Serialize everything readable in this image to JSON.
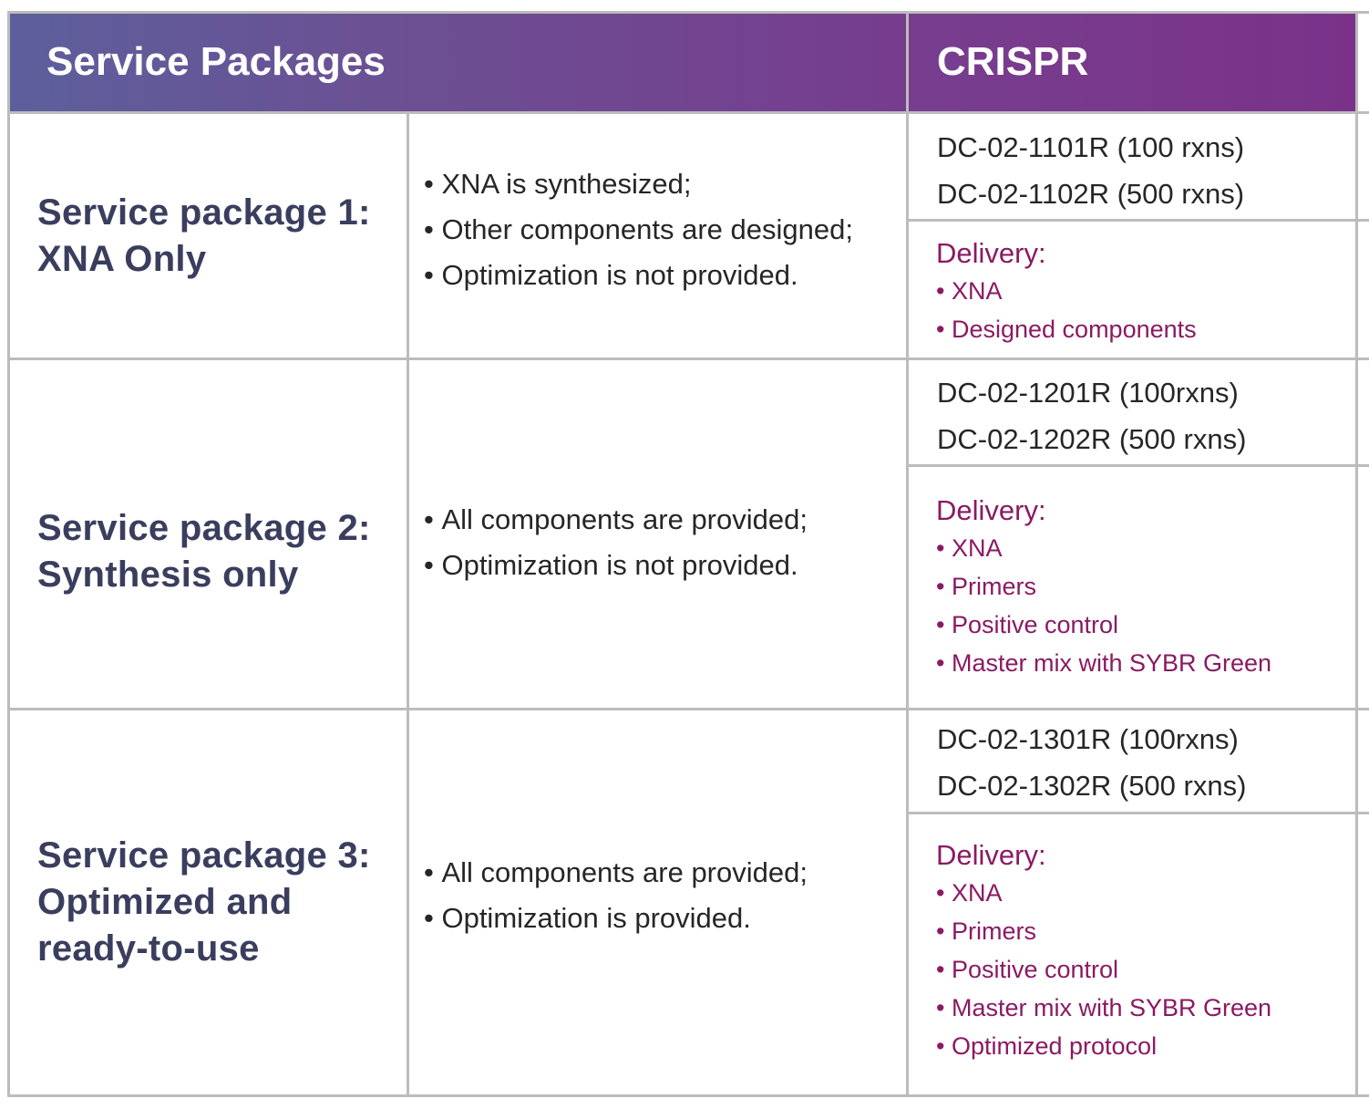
{
  "header": {
    "left_title": "Service Packages",
    "right_title": "CRISPR"
  },
  "packages": [
    {
      "title_lines": [
        "Service package 1:",
        "XNA Only"
      ],
      "features": [
        "XNA is synthesized;",
        "Other components are designed;",
        "Optimization is not provided."
      ],
      "codes": [
        "DC-02-1101R (100 rxns)",
        "DC-02-1102R (500 rxns)"
      ],
      "delivery_label": "Delivery:",
      "delivery_items": [
        "XNA",
        "Designed components"
      ]
    },
    {
      "title_lines": [
        "Service package 2:",
        "Synthesis only"
      ],
      "features": [
        "All components are provided;",
        "Optimization is not provided."
      ],
      "codes": [
        "DC-02-1201R (100rxns)",
        "DC-02-1202R (500 rxns)"
      ],
      "delivery_label": "Delivery:",
      "delivery_items": [
        "XNA",
        "Primers",
        "Positive control",
        "Master mix with SYBR Green"
      ]
    },
    {
      "title_lines": [
        "Service package 3:",
        "Optimized and",
        "ready-to-use"
      ],
      "features": [
        "All components are provided;",
        "Optimization is provided."
      ],
      "codes": [
        "DC-02-1301R (100rxns)",
        "DC-02-1302R (500 rxns)"
      ],
      "delivery_label": "Delivery:",
      "delivery_items": [
        "XNA",
        "Primers",
        "Positive control",
        "Master mix with SYBR Green",
        "Optimized protocol"
      ]
    }
  ],
  "colors": {
    "header_gradient_start": "#5d5f9c",
    "header_gradient_end": "#7a3289",
    "title_text": "#3a3e5e",
    "delivery_text": "#8a1a62",
    "border": "#bcbcbc"
  }
}
